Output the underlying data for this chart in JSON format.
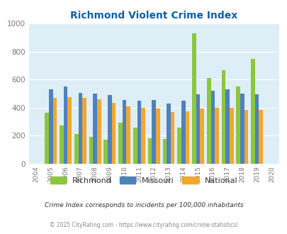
{
  "title": "Richmond Violent Crime Index",
  "years": [
    2004,
    2005,
    2006,
    2007,
    2008,
    2009,
    2010,
    2011,
    2012,
    2013,
    2014,
    2015,
    2016,
    2017,
    2018,
    2019,
    2020
  ],
  "richmond": [
    null,
    365,
    275,
    210,
    190,
    172,
    295,
    260,
    180,
    178,
    260,
    930,
    610,
    665,
    548,
    750,
    null
  ],
  "missouri": [
    null,
    530,
    548,
    503,
    500,
    490,
    455,
    452,
    453,
    428,
    448,
    497,
    520,
    530,
    500,
    495,
    null
  ],
  "national": [
    null,
    468,
    473,
    468,
    458,
    432,
    407,
    397,
    395,
    370,
    376,
    395,
    400,
    398,
    383,
    382,
    null
  ],
  "richmond_color": "#8dc63f",
  "missouri_color": "#4f81bd",
  "national_color": "#f0a830",
  "bg_color": "#ddeef6",
  "title_color": "#1060a0",
  "ylim": [
    0,
    1000
  ],
  "yticks": [
    0,
    200,
    400,
    600,
    800,
    1000
  ],
  "legend_labels": [
    "Richmond",
    "Missouri",
    "National"
  ],
  "footnote1": "Crime Index corresponds to incidents per 100,000 inhabitants",
  "footnote2": "© 2025 CityRating.com - https://www.cityrating.com/crime-statistics/",
  "footnote1_color": "#333333",
  "footnote2_color": "#888888"
}
